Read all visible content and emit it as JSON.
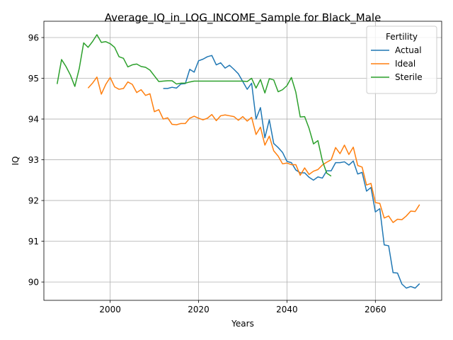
{
  "chart_data": {
    "type": "line",
    "title": "Average_IQ_in_LOG_INCOME_Sample for Black_Male",
    "xlabel": "Years",
    "ylabel": "IQ",
    "xlim": [
      1985,
      2075
    ],
    "ylim": [
      89.55,
      96.4
    ],
    "xticks": [
      2000,
      2020,
      2040,
      2060
    ],
    "yticks": [
      90,
      91,
      92,
      93,
      94,
      95,
      96
    ],
    "grid": true,
    "legend": {
      "title": "Fertility",
      "position": "top-right"
    },
    "series": [
      {
        "name": "Actual",
        "color": "#1f77b4",
        "x": [
          2012,
          2013,
          2014,
          2015,
          2016,
          2017,
          2018,
          2019,
          2020,
          2021,
          2022,
          2023,
          2024,
          2025,
          2026,
          2027,
          2028,
          2029,
          2030,
          2031,
          2032,
          2033,
          2034,
          2035,
          2036,
          2037,
          2038,
          2039,
          2040,
          2041,
          2042,
          2043,
          2044,
          2045,
          2046,
          2047,
          2048,
          2049,
          2050,
          2051,
          2052,
          2053,
          2054,
          2055,
          2056,
          2057,
          2058,
          2059,
          2060,
          2061,
          2062,
          2063,
          2064,
          2065,
          2066,
          2067,
          2068,
          2069,
          2070
        ],
        "y": [
          94.75,
          94.75,
          94.78,
          94.76,
          94.86,
          94.87,
          95.22,
          95.15,
          95.43,
          95.47,
          95.53,
          95.56,
          95.33,
          95.38,
          95.25,
          95.32,
          95.22,
          95.11,
          94.92,
          94.73,
          94.88,
          94.0,
          94.28,
          93.54,
          93.98,
          93.4,
          93.3,
          93.18,
          92.96,
          92.93,
          92.75,
          92.68,
          92.68,
          92.57,
          92.5,
          92.58,
          92.55,
          92.73,
          92.73,
          92.93,
          92.93,
          92.95,
          92.87,
          92.97,
          92.65,
          92.69,
          92.23,
          92.32,
          91.72,
          91.8,
          90.91,
          90.89,
          90.23,
          90.22,
          89.95,
          89.85,
          89.89,
          89.85,
          89.96
        ]
      },
      {
        "name": "Ideal",
        "color": "#ff7f0e",
        "x": [
          1995,
          1996,
          1997,
          1998,
          1999,
          2000,
          2001,
          2002,
          2003,
          2004,
          2005,
          2006,
          2007,
          2008,
          2009,
          2010,
          2011,
          2012,
          2013,
          2014,
          2015,
          2016,
          2017,
          2018,
          2019,
          2020,
          2021,
          2022,
          2023,
          2024,
          2025,
          2026,
          2027,
          2028,
          2029,
          2030,
          2031,
          2032,
          2033,
          2034,
          2035,
          2036,
          2037,
          2038,
          2039,
          2040,
          2041,
          2042,
          2043,
          2044,
          2045,
          2046,
          2047,
          2048,
          2049,
          2050,
          2051,
          2052,
          2053,
          2054,
          2055,
          2056,
          2057,
          2058,
          2059,
          2060,
          2061,
          2062,
          2063,
          2064,
          2065,
          2066,
          2067,
          2068,
          2069,
          2070
        ],
        "y": [
          94.76,
          94.88,
          95.03,
          94.61,
          94.85,
          95.02,
          94.79,
          94.73,
          94.75,
          94.91,
          94.85,
          94.65,
          94.72,
          94.58,
          94.62,
          94.18,
          94.23,
          94.0,
          94.03,
          93.87,
          93.86,
          93.89,
          93.89,
          94.02,
          94.07,
          94.02,
          93.98,
          94.02,
          94.11,
          93.96,
          94.08,
          94.1,
          94.08,
          94.06,
          93.97,
          94.06,
          93.95,
          94.04,
          93.62,
          93.8,
          93.36,
          93.58,
          93.22,
          93.09,
          92.9,
          92.92,
          92.88,
          92.88,
          92.62,
          92.8,
          92.64,
          92.72,
          92.76,
          92.87,
          92.94,
          93.0,
          93.3,
          93.15,
          93.36,
          93.13,
          93.31,
          92.86,
          92.82,
          92.38,
          92.42,
          91.95,
          91.93,
          91.57,
          91.62,
          91.46,
          91.54,
          91.53,
          91.62,
          91.74,
          91.73,
          91.9
        ]
      },
      {
        "name": "Sterile",
        "color": "#2ca02c",
        "x": [
          1988,
          1989,
          1990,
          1991,
          1992,
          1993,
          1994,
          1995,
          1996,
          1997,
          1998,
          1999,
          2000,
          2001,
          2002,
          2003,
          2004,
          2005,
          2006,
          2007,
          2008,
          2009,
          2010,
          2011,
          2012,
          2013,
          2014,
          2015,
          2016,
          2017,
          2018,
          2019,
          2020,
          2021,
          2022,
          2023,
          2024,
          2025,
          2026,
          2027,
          2028,
          2029,
          2030,
          2031,
          2032,
          2033,
          2034,
          2035,
          2036,
          2037,
          2038,
          2039,
          2040,
          2041,
          2042,
          2043,
          2044,
          2045,
          2046,
          2047,
          2048,
          2049,
          2050
        ],
        "y": [
          94.86,
          95.46,
          95.29,
          95.08,
          94.8,
          95.24,
          95.87,
          95.76,
          95.9,
          96.07,
          95.88,
          95.9,
          95.85,
          95.76,
          95.53,
          95.49,
          95.28,
          95.33,
          95.35,
          95.29,
          95.27,
          95.2,
          95.06,
          94.92,
          94.93,
          94.94,
          94.94,
          94.86,
          94.88,
          94.88,
          94.91,
          94.93,
          94.93,
          94.93,
          94.93,
          94.93,
          94.93,
          94.93,
          94.93,
          94.93,
          94.93,
          94.93,
          94.93,
          94.92,
          95.0,
          94.76,
          94.97,
          94.64,
          94.99,
          94.96,
          94.67,
          94.72,
          94.82,
          95.02,
          94.66,
          94.05,
          94.06,
          93.77,
          93.39,
          93.47,
          92.98,
          92.67,
          92.6
        ]
      }
    ]
  }
}
